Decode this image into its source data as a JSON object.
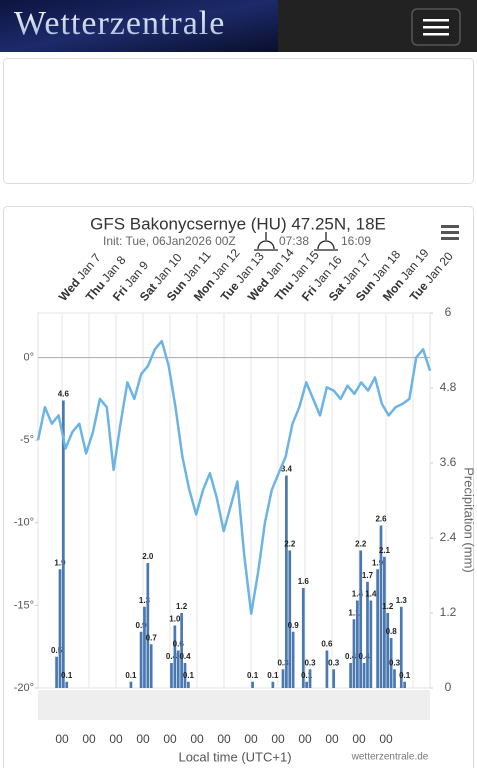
{
  "header": {
    "logo": "Wetterzentrale"
  },
  "chart_data": {
    "type": "line",
    "title": "GFS Bakonycsernye (HU) 47.25N, 18E",
    "subtitle": "Init: Tue, 06Jan2026 00Z",
    "sunrise": "07:38",
    "sunset": "16:09",
    "days": [
      {
        "day": "Wed",
        "date": "Jan 7"
      },
      {
        "day": "Thu",
        "date": "Jan 8"
      },
      {
        "day": "Fri",
        "date": "Jan 9"
      },
      {
        "day": "Sat",
        "date": "Jan 10"
      },
      {
        "day": "Sun",
        "date": "Jan 11"
      },
      {
        "day": "Mon",
        "date": "Jan 12"
      },
      {
        "day": "Tue",
        "date": "Jan 13"
      },
      {
        "day": "Wed",
        "date": "Jan 14"
      },
      {
        "day": "Thu",
        "date": "Jan 15"
      },
      {
        "day": "Fri",
        "date": "Jan 16"
      },
      {
        "day": "Sat",
        "date": "Jan 17"
      },
      {
        "day": "Sun",
        "date": "Jan 18"
      },
      {
        "day": "Mon",
        "date": "Jan 19"
      },
      {
        "day": "Tue",
        "date": "Jan 20"
      }
    ],
    "time_labels": [
      "00",
      "00",
      "00",
      "00",
      "00",
      "00",
      "00",
      "00",
      "00",
      "00",
      "00",
      "00",
      "00"
    ],
    "xlabel": "Local time (UTC+1)",
    "y2label": "Precipitation (mm)",
    "credit": "wetterzentrale.de",
    "ylim": [
      -20,
      2.7
    ],
    "yticks": [
      {
        "value": -20,
        "label": "-20°"
      },
      {
        "value": -15,
        "label": "-15°"
      },
      {
        "value": -10,
        "label": "-10°"
      },
      {
        "value": -5,
        "label": "-5°"
      },
      {
        "value": 0,
        "label": "0°"
      }
    ],
    "y2lim": [
      0,
      6
    ],
    "y2ticks": [
      0,
      1.2,
      2.4,
      3.6,
      4.8,
      6
    ],
    "grid": true,
    "series": [
      {
        "color": "#6cb4e4",
        "values": [
          -5,
          -3,
          -4,
          -3.5,
          -5.5,
          -4.5,
          -4,
          -5.8,
          -4.5,
          -2.5,
          -3,
          -6.8,
          -4,
          -1.5,
          -2.5,
          -1,
          -0.5,
          0.5,
          1,
          -0.5,
          -3,
          -6,
          -8,
          -9.5,
          -8,
          -7,
          -8.5,
          -10.5,
          -9,
          -7.5,
          -12,
          -15.5,
          -13,
          -10,
          -8,
          -7,
          -6,
          -4,
          -3,
          -1.5,
          -2.5,
          -3.5,
          -1.8,
          -2,
          -2.5,
          -1.7,
          -2.2,
          -1.5,
          -2,
          -1.2,
          -2.8,
          -3.5,
          -3,
          -2.8,
          -2.5,
          0,
          0.5,
          -0.8
        ]
      },
      {
        "type": "bar",
        "axis": "y2",
        "color": "#4a78b0",
        "values": [
          null,
          null,
          null,
          null,
          null,
          0.5,
          1.9,
          4.6,
          0.1,
          null,
          null,
          null,
          null,
          null,
          null,
          null,
          null,
          null,
          null,
          null,
          null,
          null,
          null,
          null,
          null,
          null,
          null,
          0.1,
          null,
          null,
          0.9,
          1.3,
          2.0,
          0.7,
          null,
          null,
          null,
          null,
          null,
          0.4,
          1.0,
          0.6,
          1.2,
          0.4,
          0.1,
          null,
          null,
          null,
          null,
          null,
          null,
          null,
          null,
          null,
          null,
          null,
          null,
          null,
          null,
          null,
          null,
          null,
          null,
          0.1,
          null,
          null,
          null,
          null,
          null,
          0.1,
          null,
          null,
          0.3,
          3.4,
          2.2,
          0.9,
          null,
          null,
          1.6,
          0.1,
          0.3,
          null,
          null,
          null,
          null,
          0.6,
          null,
          0.3,
          null,
          null,
          null,
          null,
          0.4,
          1.1,
          1.4,
          2.2,
          0.4,
          1.7,
          1.4,
          null,
          1.9,
          2.6,
          2.1,
          1.2,
          0.8,
          0.3,
          null,
          1.3,
          0.1,
          null,
          null,
          null,
          null,
          null,
          null,
          null
        ],
        "value_labels": [
          null,
          null,
          null,
          null,
          null,
          "0.5",
          "1.9",
          "4.6",
          "0.1",
          null,
          null,
          null,
          null,
          null,
          null,
          null,
          null,
          null,
          null,
          null,
          null,
          null,
          null,
          null,
          null,
          null,
          null,
          "0.1",
          null,
          null,
          "0.9",
          "1.3",
          "2.0",
          "0.7",
          null,
          null,
          null,
          null,
          null,
          "0.4",
          "1.0",
          "0.6",
          "1.2",
          "0.4",
          "0.1",
          null,
          null,
          null,
          null,
          null,
          null,
          null,
          null,
          null,
          null,
          null,
          null,
          null,
          null,
          null,
          null,
          null,
          null,
          "0.1",
          null,
          null,
          null,
          null,
          null,
          "0.1",
          null,
          null,
          "0.3",
          "3.4",
          "2.2",
          "0.9",
          null,
          null,
          "1.6",
          "0.1",
          "0.3",
          null,
          null,
          null,
          null,
          "0.6",
          null,
          "0.3",
          null,
          null,
          null,
          null,
          "0.4",
          "1.1",
          "1.4",
          "2.2",
          "0.4",
          "1.7",
          "1.4",
          null,
          "1.9",
          "2.6",
          "2.1",
          "1.2",
          "0.8",
          "0.3",
          null,
          "1.3",
          "0.1",
          null,
          null,
          null,
          null,
          null,
          null,
          null
        ]
      }
    ]
  }
}
